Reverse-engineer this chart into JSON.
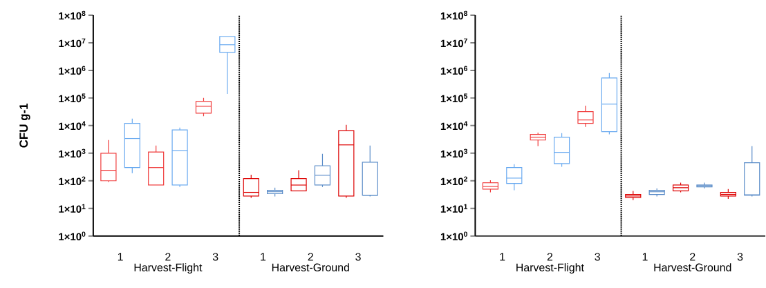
{
  "chart_data": [
    {
      "type": "box",
      "ylabel": "CFU g-1",
      "categories": [
        "1",
        "2",
        "3",
        "1",
        "2",
        "3"
      ],
      "log": "y",
      "ylim": [
        1,
        100000000
      ],
      "yticks": [
        {
          "value": 1,
          "label": "1×10$^{0}$"
        },
        {
          "value": 10,
          "label": "1×10$^{1}$"
        },
        {
          "value": 100,
          "label": "1×10$^{2}$"
        },
        {
          "value": 1000,
          "label": "1×10$^{3}$"
        },
        {
          "value": 10000,
          "label": "1×10$^{4}$"
        },
        {
          "value": 100000,
          "label": "1×10$^{5}$"
        },
        {
          "value": 1000000,
          "label": "1×10$^{6}$"
        },
        {
          "value": 10000000,
          "label": "1×10$^{7}$"
        },
        {
          "value": 100000000,
          "label": "1×10$^{8}$"
        }
      ],
      "series": [
        {
          "colors": [
            "#f03c3c",
            "#f03c3c",
            "#f03c3c",
            "#dd0000",
            "#dd0000",
            "#dd0000"
          ],
          "boxes": [
            {
              "low": 90,
              "q1": 100,
              "median": 240,
              "q3": 1000,
              "high": 3000
            },
            {
              "low": 70,
              "q1": 70,
              "median": 300,
              "q3": 1100,
              "high": 1900
            },
            {
              "low": 22000,
              "q1": 28000,
              "median": 50000,
              "q3": 75000,
              "high": 100000
            },
            {
              "low": 24,
              "q1": 28,
              "median": 38,
              "q3": 120,
              "high": 165
            },
            {
              "low": 43,
              "q1": 43,
              "median": 70,
              "q3": 120,
              "high": 240
            },
            {
              "low": 24,
              "q1": 28,
              "median": 2000,
              "q3": 6600,
              "high": 10700
            }
          ]
        },
        {
          "colors": [
            "#6aaaf0",
            "#6aaaf0",
            "#6aaaf0",
            "#5a8cc8",
            "#5a8cc8",
            "#5a8cc8"
          ],
          "boxes": [
            {
              "low": 190,
              "q1": 300,
              "median": 3400,
              "q3": 12000,
              "high": 18000
            },
            {
              "low": 60,
              "q1": 70,
              "median": 1250,
              "q3": 7000,
              "high": 8500
            },
            {
              "low": 140000,
              "q1": 4500000,
              "median": 8500000,
              "q3": 17000000,
              "high": 17000000
            },
            {
              "low": 27,
              "q1": 34,
              "median": 40,
              "q3": 45,
              "high": 56
            },
            {
              "low": 60,
              "q1": 70,
              "median": 160,
              "q3": 350,
              "high": 950
            },
            {
              "low": 27,
              "q1": 30,
              "median": 30,
              "q3": 470,
              "high": 1900
            }
          ]
        }
      ],
      "annotations": [
        "Harvest-Flight",
        "Harvest-Ground"
      ]
    },
    {
      "type": "box",
      "categories": [
        "1",
        "2",
        "3",
        "1",
        "2",
        "3"
      ],
      "log": "y",
      "ylim": [
        1,
        100000000
      ],
      "yticks": [
        {
          "value": 1,
          "label": "1×10$^{0}$"
        },
        {
          "value": 10,
          "label": "1×10$^{1}$"
        },
        {
          "value": 100,
          "label": "1×10$^{2}$"
        },
        {
          "value": 1000,
          "label": "1×10$^{3}$"
        },
        {
          "value": 10000,
          "label": "1×10$^{4}$"
        },
        {
          "value": 100000,
          "label": "1×10$^{5}$"
        },
        {
          "value": 1000000,
          "label": "1×10$^{6}$"
        },
        {
          "value": 10000000,
          "label": "1×10$^{7}$"
        },
        {
          "value": 100000000,
          "label": "1×10$^{8}$"
        }
      ],
      "series": [
        {
          "colors": [
            "#f03c3c",
            "#f03c3c",
            "#f03c3c",
            "#dd0000",
            "#dd0000",
            "#dd0000"
          ],
          "boxes": [
            {
              "low": 38,
              "q1": 50,
              "median": 63,
              "q3": 85,
              "high": 105
            },
            {
              "low": 1800,
              "q1": 3000,
              "median": 3800,
              "q3": 4800,
              "high": 5600
            },
            {
              "low": 9000,
              "q1": 12000,
              "median": 16000,
              "q3": 32000,
              "high": 53000
            },
            {
              "low": 20,
              "q1": 25,
              "median": 28,
              "q3": 32,
              "high": 43
            },
            {
              "low": 38,
              "q1": 43,
              "median": 56,
              "q3": 70,
              "high": 85
            },
            {
              "low": 22,
              "q1": 28,
              "median": 32,
              "q3": 38,
              "high": 50
            }
          ]
        },
        {
          "colors": [
            "#6aaaf0",
            "#6aaaf0",
            "#6aaaf0",
            "#5a8cc8",
            "#5a8cc8",
            "#5a8cc8"
          ],
          "boxes": [
            {
              "low": 45,
              "q1": 80,
              "median": 125,
              "q3": 300,
              "high": 400
            },
            {
              "low": 320,
              "q1": 420,
              "median": 1070,
              "q3": 3800,
              "high": 5300
            },
            {
              "low": 4800,
              "q1": 6000,
              "median": 60000,
              "q3": 530000,
              "high": 800000
            },
            {
              "low": 27,
              "q1": 32,
              "median": 40,
              "q3": 45,
              "high": 53
            },
            {
              "low": 53,
              "q1": 60,
              "median": 66,
              "q3": 70,
              "high": 85
            },
            {
              "low": 27,
              "q1": 30,
              "median": 31,
              "q3": 450,
              "high": 1800
            }
          ]
        }
      ],
      "annotations": [
        "Harvest-Flight",
        "Harvest-Ground"
      ]
    }
  ]
}
